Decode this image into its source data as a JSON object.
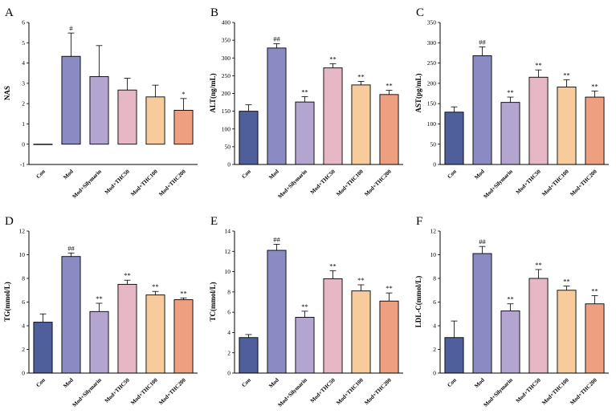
{
  "chart_data": [
    {
      "panel": "A",
      "type": "bar",
      "ylabel": "NAS",
      "ylim": [
        -1,
        6
      ],
      "yticks": [
        "-1",
        "0",
        "1",
        "2",
        "3",
        "4",
        "5",
        "6"
      ],
      "categories": [
        "Con",
        "Mod",
        "Mod+Silymarin",
        "Mod+THC50",
        "Mod+THC100",
        "Mod+THC200"
      ],
      "values": [
        0.0,
        4.33,
        3.33,
        2.67,
        2.33,
        1.67
      ],
      "errors": [
        0.0,
        1.15,
        1.53,
        0.58,
        0.58,
        0.58
      ],
      "annotations": [
        "",
        "#",
        "",
        "",
        "",
        "*"
      ]
    },
    {
      "panel": "B",
      "type": "bar",
      "ylabel": "ALT(ng/mL)",
      "ylim": [
        0,
        400
      ],
      "yticks": [
        "0",
        "50",
        "100",
        "150",
        "200",
        "250",
        "300",
        "350",
        "400"
      ],
      "categories": [
        "Con",
        "Mod",
        "Mod+Silymarin",
        "Mod+THC50",
        "Mod+THC100",
        "Mod+THC200"
      ],
      "values": [
        150,
        328,
        176,
        272,
        224,
        197
      ],
      "errors": [
        18,
        12,
        15,
        12,
        10,
        12
      ],
      "annotations": [
        "",
        "##",
        "**",
        "**",
        "**",
        "**"
      ]
    },
    {
      "panel": "C",
      "type": "bar",
      "ylabel": "AST(pg/mL)",
      "ylim": [
        0,
        350
      ],
      "yticks": [
        "0",
        "50",
        "100",
        "150",
        "200",
        "250",
        "300",
        "350"
      ],
      "categories": [
        "Con",
        "Mod",
        "Mod+Silymarin",
        "Mod+THC50",
        "Mod+THC100",
        "Mod+THC200"
      ],
      "values": [
        129,
        268,
        153,
        215,
        191,
        166
      ],
      "errors": [
        13,
        22,
        13,
        18,
        18,
        15
      ],
      "annotations": [
        "",
        "##",
        "**",
        "**",
        "**",
        "**"
      ]
    },
    {
      "panel": "D",
      "type": "bar",
      "ylabel": "TG(mmol/L)",
      "ylim": [
        0,
        12
      ],
      "yticks": [
        "0",
        "2",
        "4",
        "6",
        "8",
        "10",
        "12"
      ],
      "categories": [
        "Con",
        "Mod",
        "Mod+Silymarin",
        "Mod+THC50",
        "Mod+THC100",
        "Mod+THC200"
      ],
      "values": [
        4.3,
        9.85,
        5.2,
        7.5,
        6.6,
        6.2
      ],
      "errors": [
        0.7,
        0.3,
        0.7,
        0.35,
        0.3,
        0.15
      ],
      "annotations": [
        "",
        "##",
        "**",
        "**",
        "**",
        "**"
      ]
    },
    {
      "panel": "E",
      "type": "bar",
      "ylabel": "TC(mmol/L)",
      "ylim": [
        0,
        14
      ],
      "yticks": [
        "0",
        "2",
        "4",
        "6",
        "8",
        "10",
        "12",
        "14"
      ],
      "categories": [
        "Con",
        "Mod",
        "Mod+Silymarin",
        "Mod+THC50",
        "Mod+THC100",
        "Mod+THC200"
      ],
      "values": [
        3.5,
        12.1,
        5.5,
        9.3,
        8.1,
        7.1
      ],
      "errors": [
        0.3,
        0.6,
        0.6,
        0.8,
        0.6,
        0.8
      ],
      "annotations": [
        "",
        "##",
        "**",
        "**",
        "**",
        "**"
      ]
    },
    {
      "panel": "F",
      "type": "bar",
      "ylabel": "LDL-C(mmol/L)",
      "ylim": [
        0,
        12
      ],
      "yticks": [
        "0",
        "2",
        "4",
        "6",
        "8",
        "10",
        "12"
      ],
      "categories": [
        "Con",
        "Mod",
        "Mod+Silymarin",
        "Mod+THC50",
        "Mod+THC100",
        "Mod+THC200"
      ],
      "values": [
        3.0,
        10.1,
        5.25,
        8.0,
        7.0,
        5.85
      ],
      "errors": [
        1.4,
        0.6,
        0.6,
        0.75,
        0.35,
        0.7
      ],
      "annotations": [
        "",
        "##",
        "**",
        "**",
        "**",
        "**"
      ]
    }
  ],
  "bar_colors": [
    "#4e5f9b",
    "#8a8bc2",
    "#b3a4d0",
    "#e6b8c6",
    "#f8cb9c",
    "#ee9f80"
  ]
}
